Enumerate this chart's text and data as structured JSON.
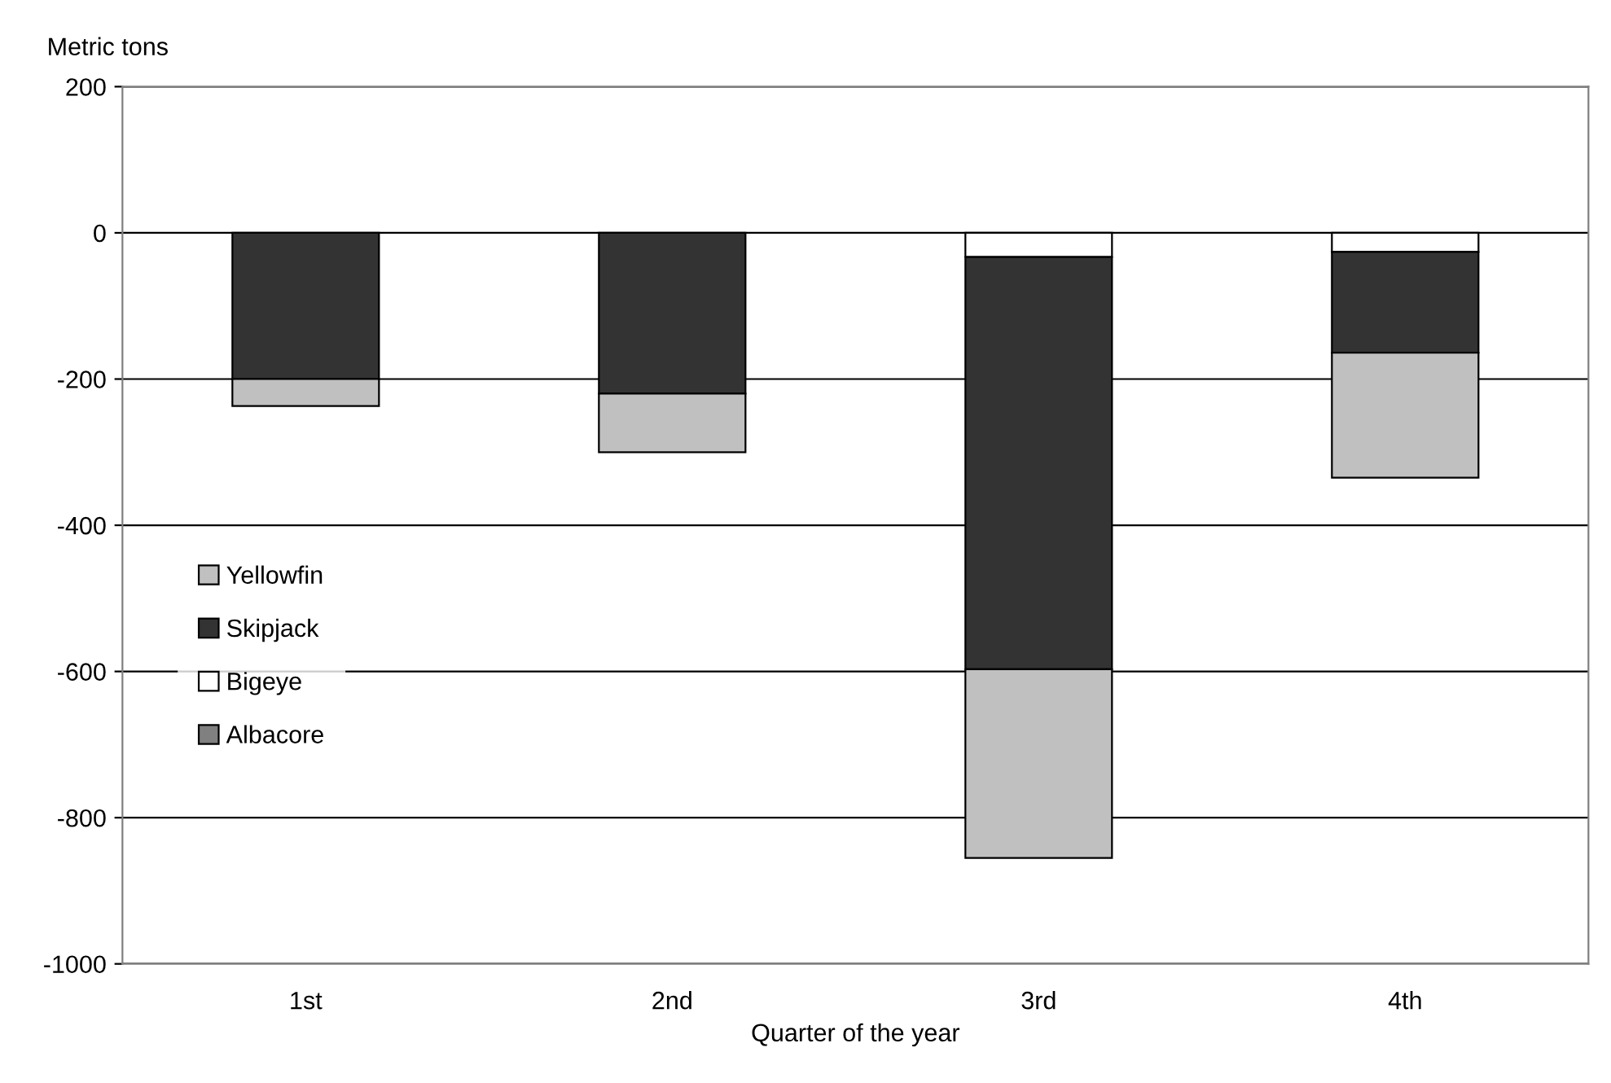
{
  "chart_data": {
    "type": "bar",
    "stacked": true,
    "xlabel": "Quarter of the year",
    "ylabel": "Metric tons",
    "categories": [
      "1st",
      "2nd",
      "3rd",
      "4th"
    ],
    "series": [
      {
        "name": "Albacore",
        "color": "#808080",
        "values": [
          null,
          null,
          null,
          null
        ]
      },
      {
        "name": "Bigeye",
        "color": "#ffffff",
        "values": [
          null,
          null,
          -33,
          -26
        ]
      },
      {
        "name": "Skipjack",
        "color": "#333333",
        "values": [
          -200,
          -220,
          -564,
          -138
        ]
      },
      {
        "name": "Yellowfin",
        "color": "#c0c0c0",
        "values": [
          -37,
          -80,
          -258,
          -171
        ]
      }
    ],
    "ylim": [
      -1000,
      200
    ],
    "yticks": [
      -1000,
      -800,
      -600,
      -400,
      -200,
      0,
      200
    ],
    "grid": "y",
    "legend": "left"
  }
}
